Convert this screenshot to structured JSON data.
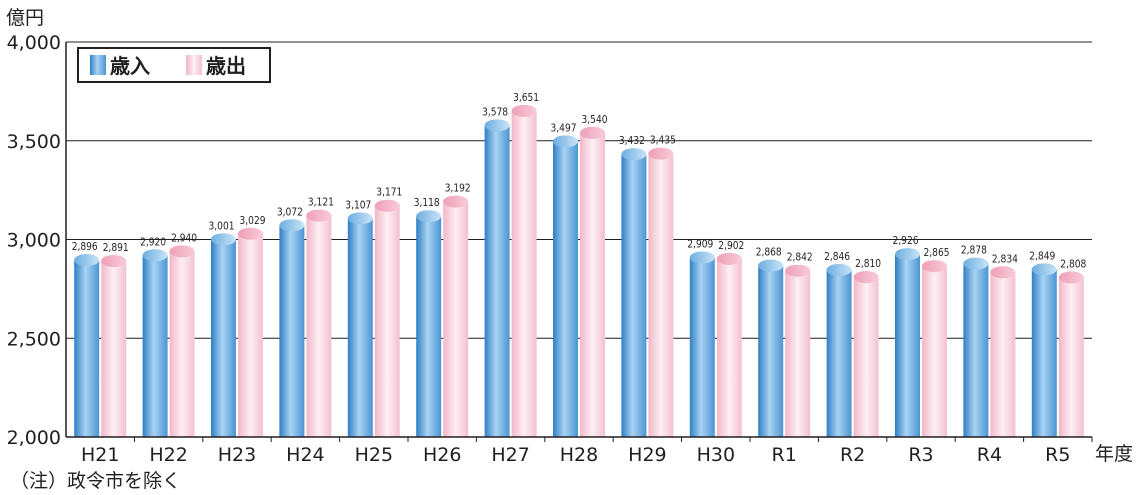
{
  "chart_data": {
    "type": "bar",
    "title": "",
    "ylabel": "億円",
    "xlabel": "年度",
    "ylim": [
      2000,
      4000
    ],
    "yticks": [
      "2,000",
      "2,500",
      "3,000",
      "3,500",
      "4,000"
    ],
    "ytick_values": [
      2000,
      2500,
      3000,
      3500,
      4000
    ],
    "grid": true,
    "legend_position": "top-left",
    "categories": [
      "H21",
      "H22",
      "H23",
      "H24",
      "H25",
      "H26",
      "H27",
      "H28",
      "H29",
      "H30",
      "R1",
      "R2",
      "R3",
      "R4",
      "R5"
    ],
    "series": [
      {
        "name": "歳入",
        "values": [
          2896,
          2920,
          3001,
          3072,
          3107,
          3118,
          3578,
          3497,
          3432,
          2909,
          2868,
          2846,
          2926,
          2878,
          2849
        ],
        "labels": [
          "2,896",
          "2,920",
          "3,001",
          "3,072",
          "3,107",
          "3,118",
          "3,578",
          "3,497",
          "3,432",
          "2,909",
          "2,868",
          "2,846",
          "2,926",
          "2,878",
          "2,849"
        ],
        "color": "#5b9fd6"
      },
      {
        "name": "歳出",
        "values": [
          2891,
          2940,
          3029,
          3121,
          3171,
          3192,
          3651,
          3540,
          3435,
          2902,
          2842,
          2810,
          2865,
          2834,
          2808
        ],
        "labels": [
          "2,891",
          "2,940",
          "3,029",
          "3,121",
          "3,171",
          "3,192",
          "3,651",
          "3,540",
          "3,435",
          "2,902",
          "2,842",
          "2,810",
          "2,865",
          "2,834",
          "2,808"
        ],
        "color": "#f2b6c8"
      }
    ]
  },
  "note": "（注）政令市を除く"
}
